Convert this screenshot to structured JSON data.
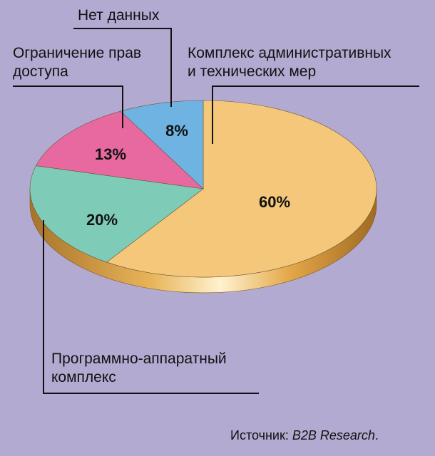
{
  "chart_data": {
    "type": "pie",
    "style": "3d",
    "title": "",
    "legend": "none",
    "slices": [
      {
        "label_lines": [
          "Комплекс административных",
          "и технических мер"
        ],
        "percent_label": "60%",
        "value": 60,
        "color": "#f5c77a"
      },
      {
        "label_lines": [
          "Программно-аппаратный",
          "комплекс"
        ],
        "percent_label": "20%",
        "value": 20,
        "color": "#7ecbb7"
      },
      {
        "label_lines": [
          "Ограничение прав",
          "доступа"
        ],
        "percent_label": "13%",
        "value": 13,
        "color": "#e7699f"
      },
      {
        "label_lines": [
          "Нет данных"
        ],
        "percent_label": "8%",
        "value": 8,
        "color": "#6fb3e3"
      }
    ],
    "side_color": "#c9922f",
    "source": {
      "prefix": "Источник: ",
      "name": "B2B Research",
      "suffix": "."
    }
  }
}
